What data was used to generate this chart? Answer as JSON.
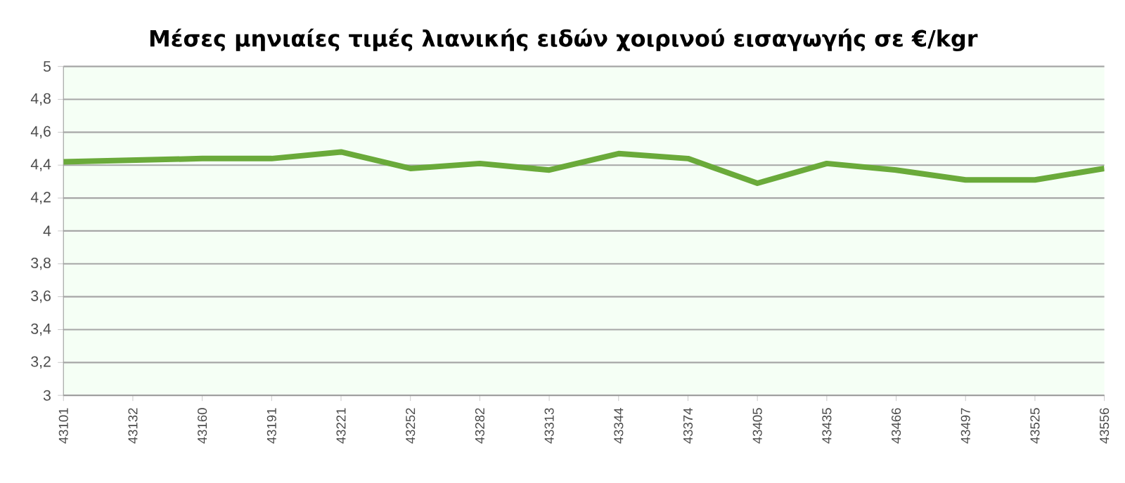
{
  "chart_data": {
    "type": "line",
    "title": "Μέσες μηνιαίες τιμές λιανικής ειδών χοιρινού εισαγωγής σε €/kgr",
    "categories": [
      "43101",
      "43132",
      "43160",
      "43191",
      "43221",
      "43252",
      "43282",
      "43313",
      "43344",
      "43374",
      "43405",
      "43435",
      "43466",
      "43497",
      "43525",
      "43556"
    ],
    "series": [
      {
        "color": "#6aaa3a",
        "values": [
          4.42,
          4.43,
          4.44,
          4.44,
          4.48,
          4.38,
          4.41,
          4.37,
          4.47,
          4.44,
          4.29,
          4.41,
          4.37,
          4.31,
          4.31,
          4.38
        ]
      }
    ],
    "ylim": [
      3,
      5
    ],
    "yticks": [
      3,
      {
        "value": 3.2,
        "label": "3,2"
      },
      {
        "value": 3.4,
        "label": "3,4"
      },
      {
        "value": 3.6,
        "label": "3,6"
      },
      {
        "value": 3.8,
        "label": "3,8"
      },
      4,
      {
        "value": 4.2,
        "label": "4,2"
      },
      {
        "value": 4.4,
        "label": "4,4"
      },
      {
        "value": 4.6,
        "label": "4,6"
      },
      {
        "value": 4.8,
        "label": "4,8"
      },
      5
    ],
    "grid": "y",
    "marker": "none",
    "line_style": "solid"
  }
}
